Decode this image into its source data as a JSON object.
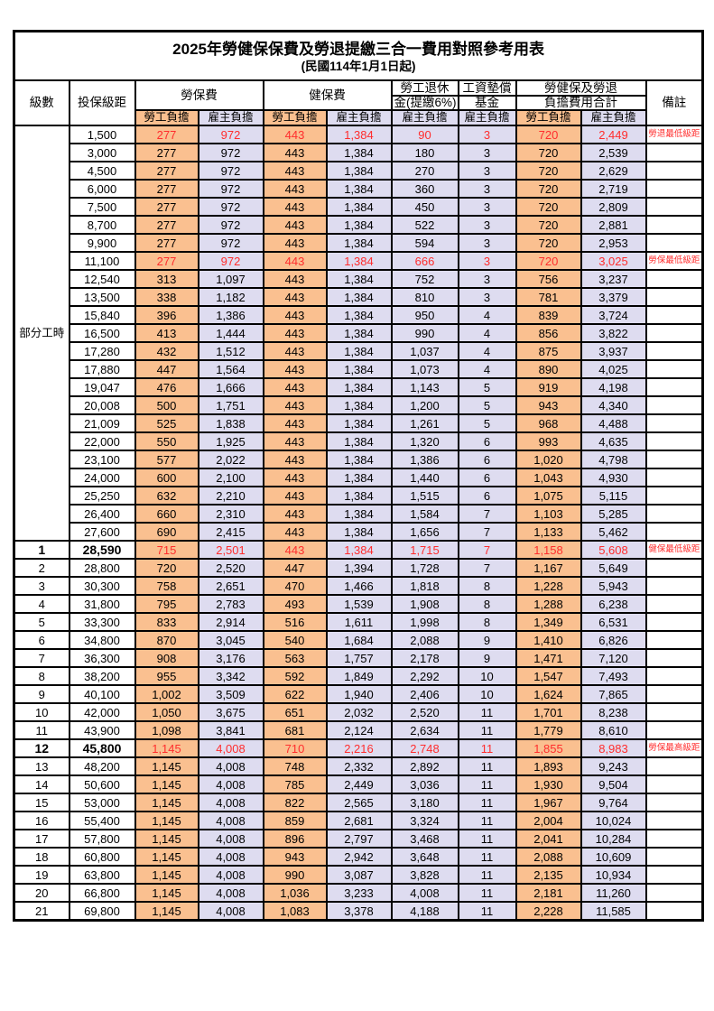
{
  "title": "2025年勞健保保費及勞退提繳三合一費用對照參考用表",
  "subtitle": "(民國114年1月1日起)",
  "colors": {
    "employee_cell_bg": "#FAC090",
    "employer_cell_bg": "#DEDCF0",
    "highlight_text": "#FF2D2D",
    "grid_border": "#000000",
    "page_bg": "#FFFFFF"
  },
  "headers": {
    "grade": "級數",
    "bracket": "投保級距",
    "labor_insurance": "勞保費",
    "health_insurance": "健保費",
    "pension_line1": "勞工退休",
    "pension_line2": "金(提繳6%)",
    "wage_fund_line1": "工資墊償",
    "wage_fund_line2": "基金",
    "total_line1": "勞健保及勞退",
    "total_line2": "負擔費用合計",
    "note": "備註",
    "employee_share": "勞工負擔",
    "employer_share": "雇主負擔"
  },
  "row_format": [
    "bracket",
    "labor_emp",
    "labor_er",
    "health_emp",
    "health_er",
    "pension_er",
    "fund_er",
    "total_emp",
    "total_er",
    "note",
    "highlight"
  ],
  "part_time": {
    "label": "部分工時",
    "rows": [
      [
        "1,500",
        "277",
        "972",
        "443",
        "1,384",
        "90",
        "3",
        "720",
        "2,449",
        "勞退最低級距",
        true
      ],
      [
        "3,000",
        "277",
        "972",
        "443",
        "1,384",
        "180",
        "3",
        "720",
        "2,539",
        "",
        false
      ],
      [
        "4,500",
        "277",
        "972",
        "443",
        "1,384",
        "270",
        "3",
        "720",
        "2,629",
        "",
        false
      ],
      [
        "6,000",
        "277",
        "972",
        "443",
        "1,384",
        "360",
        "3",
        "720",
        "2,719",
        "",
        false
      ],
      [
        "7,500",
        "277",
        "972",
        "443",
        "1,384",
        "450",
        "3",
        "720",
        "2,809",
        "",
        false
      ],
      [
        "8,700",
        "277",
        "972",
        "443",
        "1,384",
        "522",
        "3",
        "720",
        "2,881",
        "",
        false
      ],
      [
        "9,900",
        "277",
        "972",
        "443",
        "1,384",
        "594",
        "3",
        "720",
        "2,953",
        "",
        false
      ],
      [
        "11,100",
        "277",
        "972",
        "443",
        "1,384",
        "666",
        "3",
        "720",
        "3,025",
        "勞保最低級距",
        true
      ],
      [
        "12,540",
        "313",
        "1,097",
        "443",
        "1,384",
        "752",
        "3",
        "756",
        "3,237",
        "",
        false
      ],
      [
        "13,500",
        "338",
        "1,182",
        "443",
        "1,384",
        "810",
        "3",
        "781",
        "3,379",
        "",
        false
      ],
      [
        "15,840",
        "396",
        "1,386",
        "443",
        "1,384",
        "950",
        "4",
        "839",
        "3,724",
        "",
        false
      ],
      [
        "16,500",
        "413",
        "1,444",
        "443",
        "1,384",
        "990",
        "4",
        "856",
        "3,822",
        "",
        false
      ],
      [
        "17,280",
        "432",
        "1,512",
        "443",
        "1,384",
        "1,037",
        "4",
        "875",
        "3,937",
        "",
        false
      ],
      [
        "17,880",
        "447",
        "1,564",
        "443",
        "1,384",
        "1,073",
        "4",
        "890",
        "4,025",
        "",
        false
      ],
      [
        "19,047",
        "476",
        "1,666",
        "443",
        "1,384",
        "1,143",
        "5",
        "919",
        "4,198",
        "",
        false
      ],
      [
        "20,008",
        "500",
        "1,751",
        "443",
        "1,384",
        "1,200",
        "5",
        "943",
        "4,340",
        "",
        false
      ],
      [
        "21,009",
        "525",
        "1,838",
        "443",
        "1,384",
        "1,261",
        "5",
        "968",
        "4,488",
        "",
        false
      ],
      [
        "22,000",
        "550",
        "1,925",
        "443",
        "1,384",
        "1,320",
        "6",
        "993",
        "4,635",
        "",
        false
      ],
      [
        "23,100",
        "577",
        "2,022",
        "443",
        "1,384",
        "1,386",
        "6",
        "1,020",
        "4,798",
        "",
        false
      ],
      [
        "24,000",
        "600",
        "2,100",
        "443",
        "1,384",
        "1,440",
        "6",
        "1,043",
        "4,930",
        "",
        false
      ],
      [
        "25,250",
        "632",
        "2,210",
        "443",
        "1,384",
        "1,515",
        "6",
        "1,075",
        "5,115",
        "",
        false
      ],
      [
        "26,400",
        "660",
        "2,310",
        "443",
        "1,384",
        "1,584",
        "7",
        "1,103",
        "5,285",
        "",
        false
      ],
      [
        "27,600",
        "690",
        "2,415",
        "443",
        "1,384",
        "1,656",
        "7",
        "1,133",
        "5,462",
        "",
        false
      ]
    ]
  },
  "graded_row_format": [
    "grade",
    "bracket",
    "labor_emp",
    "labor_er",
    "health_emp",
    "health_er",
    "pension_er",
    "fund_er",
    "total_emp",
    "total_er",
    "note",
    "highlight",
    "bold"
  ],
  "graded": {
    "rows": [
      [
        "1",
        "28,590",
        "715",
        "2,501",
        "443",
        "1,384",
        "1,715",
        "7",
        "1,158",
        "5,608",
        "健保最低級距",
        true,
        true
      ],
      [
        "2",
        "28,800",
        "720",
        "2,520",
        "447",
        "1,394",
        "1,728",
        "7",
        "1,167",
        "5,649",
        "",
        false,
        false
      ],
      [
        "3",
        "30,300",
        "758",
        "2,651",
        "470",
        "1,466",
        "1,818",
        "8",
        "1,228",
        "5,943",
        "",
        false,
        false
      ],
      [
        "4",
        "31,800",
        "795",
        "2,783",
        "493",
        "1,539",
        "1,908",
        "8",
        "1,288",
        "6,238",
        "",
        false,
        false
      ],
      [
        "5",
        "33,300",
        "833",
        "2,914",
        "516",
        "1,611",
        "1,998",
        "8",
        "1,349",
        "6,531",
        "",
        false,
        false
      ],
      [
        "6",
        "34,800",
        "870",
        "3,045",
        "540",
        "1,684",
        "2,088",
        "9",
        "1,410",
        "6,826",
        "",
        false,
        false
      ],
      [
        "7",
        "36,300",
        "908",
        "3,176",
        "563",
        "1,757",
        "2,178",
        "9",
        "1,471",
        "7,120",
        "",
        false,
        false
      ],
      [
        "8",
        "38,200",
        "955",
        "3,342",
        "592",
        "1,849",
        "2,292",
        "10",
        "1,547",
        "7,493",
        "",
        false,
        false
      ],
      [
        "9",
        "40,100",
        "1,002",
        "3,509",
        "622",
        "1,940",
        "2,406",
        "10",
        "1,624",
        "7,865",
        "",
        false,
        false
      ],
      [
        "10",
        "42,000",
        "1,050",
        "3,675",
        "651",
        "2,032",
        "2,520",
        "11",
        "1,701",
        "8,238",
        "",
        false,
        false
      ],
      [
        "11",
        "43,900",
        "1,098",
        "3,841",
        "681",
        "2,124",
        "2,634",
        "11",
        "1,779",
        "8,610",
        "",
        false,
        false
      ],
      [
        "12",
        "45,800",
        "1,145",
        "4,008",
        "710",
        "2,216",
        "2,748",
        "11",
        "1,855",
        "8,983",
        "勞保最高級距",
        true,
        true
      ],
      [
        "13",
        "48,200",
        "1,145",
        "4,008",
        "748",
        "2,332",
        "2,892",
        "11",
        "1,893",
        "9,243",
        "",
        false,
        false
      ],
      [
        "14",
        "50,600",
        "1,145",
        "4,008",
        "785",
        "2,449",
        "3,036",
        "11",
        "1,930",
        "9,504",
        "",
        false,
        false
      ],
      [
        "15",
        "53,000",
        "1,145",
        "4,008",
        "822",
        "2,565",
        "3,180",
        "11",
        "1,967",
        "9,764",
        "",
        false,
        false
      ],
      [
        "16",
        "55,400",
        "1,145",
        "4,008",
        "859",
        "2,681",
        "3,324",
        "11",
        "2,004",
        "10,024",
        "",
        false,
        false
      ],
      [
        "17",
        "57,800",
        "1,145",
        "4,008",
        "896",
        "2,797",
        "3,468",
        "11",
        "2,041",
        "10,284",
        "",
        false,
        false
      ],
      [
        "18",
        "60,800",
        "1,145",
        "4,008",
        "943",
        "2,942",
        "3,648",
        "11",
        "2,088",
        "10,609",
        "",
        false,
        false
      ],
      [
        "19",
        "63,800",
        "1,145",
        "4,008",
        "990",
        "3,087",
        "3,828",
        "11",
        "2,135",
        "10,934",
        "",
        false,
        false
      ],
      [
        "20",
        "66,800",
        "1,145",
        "4,008",
        "1,036",
        "3,233",
        "4,008",
        "11",
        "2,181",
        "11,260",
        "",
        false,
        false
      ],
      [
        "21",
        "69,800",
        "1,145",
        "4,008",
        "1,083",
        "3,378",
        "4,188",
        "11",
        "2,228",
        "11,585",
        "",
        false,
        false
      ]
    ]
  }
}
